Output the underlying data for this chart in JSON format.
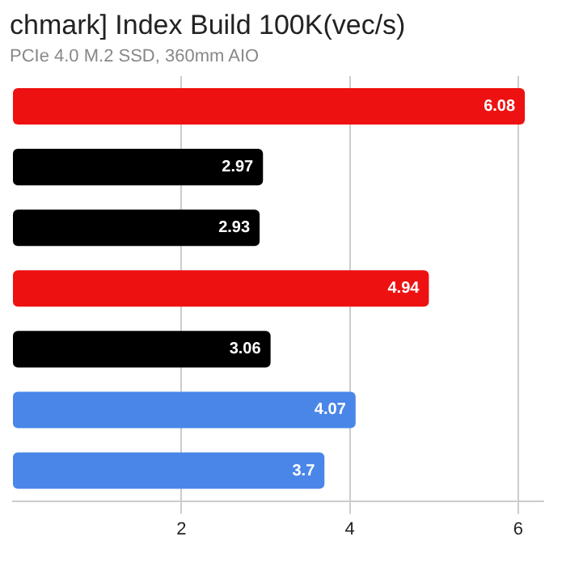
{
  "chart_data": {
    "type": "bar",
    "orientation": "horizontal",
    "title": "chmark] Index Build 100K(vec/s)",
    "subtitle": "PCIe 4.0 M.2 SSD, 360mm AIO",
    "categories": [
      null,
      null,
      null,
      null,
      null,
      null,
      null
    ],
    "values": [
      6.08,
      2.97,
      2.93,
      4.94,
      3.06,
      4.07,
      3.7
    ],
    "colors": [
      "#ee1111",
      "#000000",
      "#000000",
      "#ee1111",
      "#000000",
      "#4a86e8",
      "#4a86e8"
    ],
    "xlim": [
      0,
      6.3
    ],
    "xticks": [
      2,
      4,
      6
    ],
    "grid": "x",
    "data_labels": true,
    "legend": false
  }
}
